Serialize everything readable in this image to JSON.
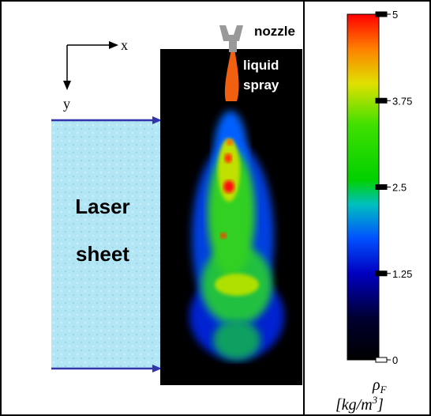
{
  "figure": {
    "nozzle_label": "nozzle",
    "spray_label": [
      "liquid",
      "spray"
    ],
    "laser_label": [
      "Laser",
      "sheet"
    ],
    "axis_x": "x",
    "axis_y": "y"
  },
  "colorbar": {
    "lim": [
      0,
      5
    ],
    "ticks": [
      0,
      1.25,
      2.5,
      3.75,
      5
    ],
    "symbol": "ρ",
    "symbol_sub": "F",
    "unit": "[kg/m",
    "unit_sup": "3",
    "unit_end": "]"
  }
}
